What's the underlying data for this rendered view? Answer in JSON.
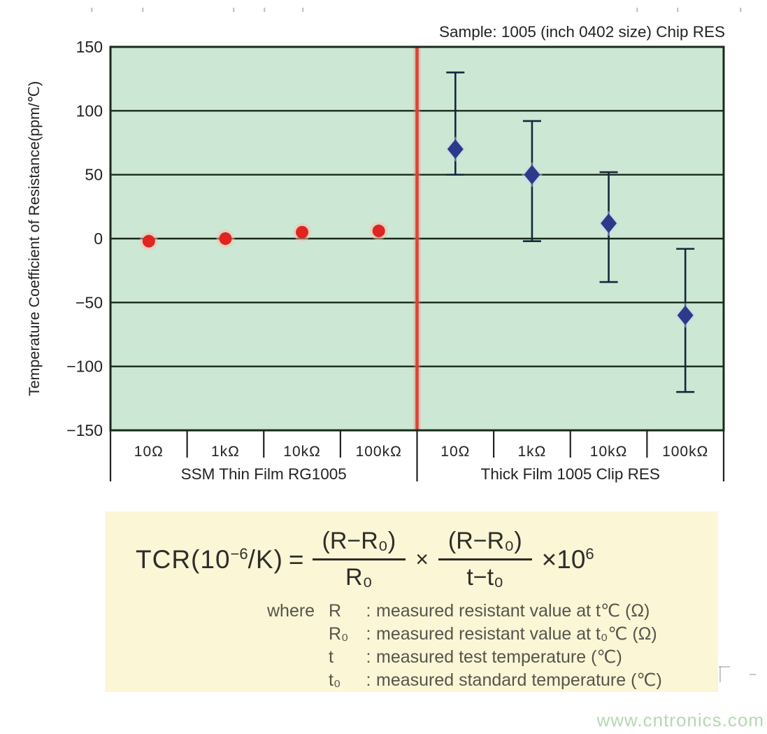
{
  "colors": {
    "plot_bg": "#cce8d4",
    "grid": "#182a1b",
    "axis_text": "#222222",
    "divider": "#d84438",
    "divider_halo": "rgba(232,128,116,0.35)",
    "thin_film_marker": "#e02420",
    "thin_film_halo": "#f3bdab",
    "thick_film_marker": "#2c3a8c",
    "thick_film_halo": "#c7d2e8",
    "error_bar": "#14283a",
    "formula_box_bg": "#fbf6d6",
    "formula_text": "#2e2d28",
    "where_text": "#56554b",
    "watermark": "#b5d8b2"
  },
  "chart_data": {
    "type": "scatter",
    "title": "Sample: 1005 (inch 0402 size) Chip RES",
    "ylabel": "Temperature Coefficient of Resistance(ppm/℃)",
    "xlabel": "",
    "ylim": [
      -150,
      150
    ],
    "yticks": [
      150,
      100,
      50,
      0,
      -50,
      -100,
      -150
    ],
    "grid": true,
    "legend": "none",
    "groups": [
      {
        "label": "SSM Thin Film RG1005",
        "marker": "circle",
        "categories": [
          "10Ω",
          "1kΩ",
          "10kΩ",
          "100kΩ"
        ],
        "values": [
          -2,
          0,
          5,
          6
        ]
      },
      {
        "label": "Thick Film 1005 Clip RES",
        "marker": "diamond",
        "categories": [
          "10Ω",
          "1kΩ",
          "10kΩ",
          "100kΩ"
        ],
        "values": [
          70,
          50,
          12,
          -60
        ],
        "error_high": [
          130,
          92,
          52,
          -8
        ],
        "error_low": [
          50,
          -2,
          -34,
          -120
        ]
      }
    ]
  },
  "formula": {
    "lhs_pre": "TCR(10",
    "lhs_sup": "−6",
    "lhs_post": "/K)",
    "equals": "=",
    "frac1_num": "(R−R₀)",
    "frac1_den": "R₀",
    "times": "×",
    "frac2_num": "(R−R₀)",
    "frac2_den": "t−t₀",
    "factor_pre": "×10",
    "factor_sup": "6"
  },
  "formula_notes": {
    "where_label": "where",
    "colon": ":",
    "definitions": [
      {
        "sym": "R",
        "desc": "measured resistant value at t℃ (Ω)"
      },
      {
        "sym": "R₀",
        "desc": "measured resistant value at t₀℃ (Ω)"
      },
      {
        "sym": "t",
        "desc": "measured test temperature (℃)"
      },
      {
        "sym": "t₀",
        "desc": "measured standard temperature (℃)"
      }
    ]
  },
  "watermark": "www.cntronics.com"
}
